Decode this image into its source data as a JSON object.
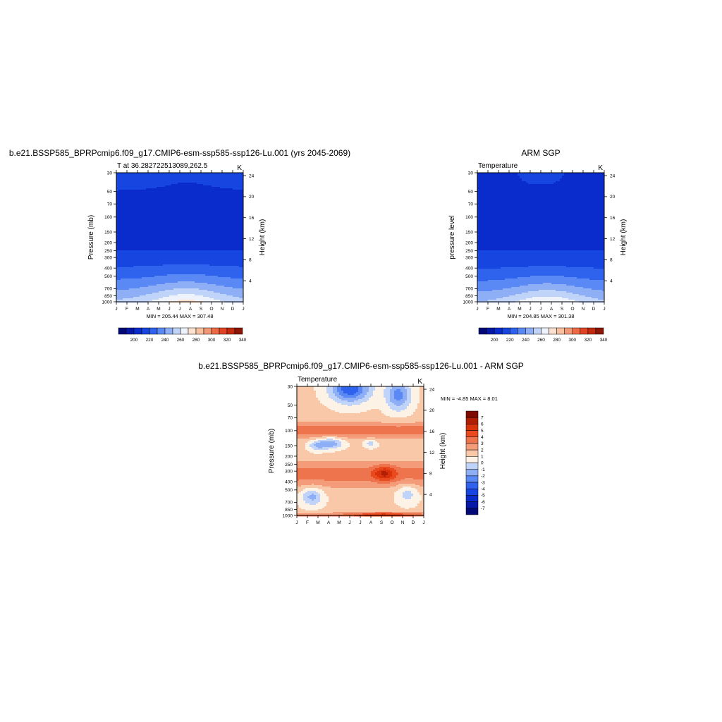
{
  "figure_title": "b.e21.BSSP585_BPRPcmip6.f09_g17.CMIP6-esm-ssp585-ssp126-Lu.001 - ARM SGP",
  "chart_data": [
    {
      "type": "heatmap",
      "title": "b.e21.BSSP585_BPRPcmip6.f09_g17.CMIP6-esm-ssp585-ssp126-Lu.001 (yrs 2045-2069)",
      "subtitle_left": "T at 36.282722513089,262.5",
      "subtitle_right": "K",
      "ylabel": "Pressure (mb)",
      "ylabel_right": "Height (km)",
      "x_ticks": [
        "J",
        "F",
        "M",
        "A",
        "M",
        "J",
        "J",
        "A",
        "S",
        "O",
        "N",
        "D",
        "J"
      ],
      "y_ticks": [
        "30",
        "50",
        "70",
        "100",
        "150",
        "200",
        "250",
        "300",
        "400",
        "500",
        "700",
        "850",
        "1000"
      ],
      "y_right_ticks": [
        "24",
        "20",
        "16",
        "12",
        "8",
        "4"
      ],
      "minmax": "MIN = 205.44   MAX = 307.48",
      "colorbar_labels": [
        "200",
        "220",
        "240",
        "260",
        "280",
        "300",
        "320",
        "340"
      ],
      "levels": [
        190,
        200,
        210,
        220,
        230,
        240,
        250,
        260,
        270,
        280,
        290,
        300,
        310,
        320,
        330,
        340,
        350
      ]
    },
    {
      "type": "heatmap",
      "title": "ARM SGP",
      "subtitle_left": "Temperature",
      "subtitle_right": "K",
      "ylabel": "pressure level",
      "ylabel_right": "Height (km)",
      "x_ticks": [
        "J",
        "F",
        "M",
        "A",
        "M",
        "J",
        "J",
        "A",
        "S",
        "O",
        "N",
        "D",
        "J"
      ],
      "y_ticks": [
        "30",
        "50",
        "70",
        "100",
        "150",
        "200",
        "250",
        "300",
        "400",
        "500",
        "700",
        "850",
        "1000"
      ],
      "y_right_ticks": [
        "24",
        "20",
        "16",
        "12",
        "8",
        "4"
      ],
      "minmax": "MIN = 204.85   MAX = 301.38",
      "colorbar_labels": [
        "200",
        "220",
        "240",
        "260",
        "280",
        "300",
        "320",
        "340"
      ],
      "levels": [
        190,
        200,
        210,
        220,
        230,
        240,
        250,
        260,
        270,
        280,
        290,
        300,
        310,
        320,
        330,
        340,
        350
      ]
    },
    {
      "type": "heatmap",
      "title": "",
      "subtitle_left": "Temperature",
      "subtitle_right": "K",
      "ylabel": "Pressure (mb)",
      "ylabel_right": "Height (km)",
      "x_ticks": [
        "J",
        "F",
        "M",
        "A",
        "M",
        "J",
        "J",
        "A",
        "S",
        "O",
        "N",
        "D",
        "J"
      ],
      "y_ticks": [
        "30",
        "50",
        "70",
        "100",
        "150",
        "200",
        "250",
        "300",
        "400",
        "500",
        "700",
        "850",
        "1000"
      ],
      "y_right_ticks": [
        "24",
        "20",
        "16",
        "12",
        "8",
        "4"
      ],
      "minmax": "MIN =  -4.85 MAX =   8.01",
      "colorbar_labels": [
        "7",
        "6",
        "5",
        "4",
        "3",
        "2",
        "1",
        "0",
        "-1",
        "-2",
        "-3",
        "-4",
        "-5",
        "-6",
        "-7"
      ],
      "levels": [
        -8,
        -7,
        -6,
        -5,
        -4,
        -3,
        -2,
        -1,
        0,
        1,
        2,
        3,
        4,
        5,
        6,
        7,
        8
      ]
    }
  ],
  "colors": {
    "abs_palette": [
      "#030a78",
      "#0518a8",
      "#0a2ccc",
      "#1645e0",
      "#2f63ee",
      "#5a88f4",
      "#8eaef6",
      "#c0d3f8",
      "#eef2fb",
      "#fde3cf",
      "#f9c09f",
      "#f49775",
      "#ee6a45",
      "#e24322",
      "#c22a0e",
      "#8c1504"
    ],
    "diff_palette": [
      "#030a78",
      "#0518a8",
      "#0a2ccc",
      "#1645e0",
      "#2f63ee",
      "#5a88f4",
      "#8eaef6",
      "#c0d3f8",
      "#fdf2e6",
      "#f9c8a8",
      "#f49c7a",
      "#ee744d",
      "#e94a1f",
      "#d8330b",
      "#b01f04",
      "#7e0a00"
    ]
  }
}
